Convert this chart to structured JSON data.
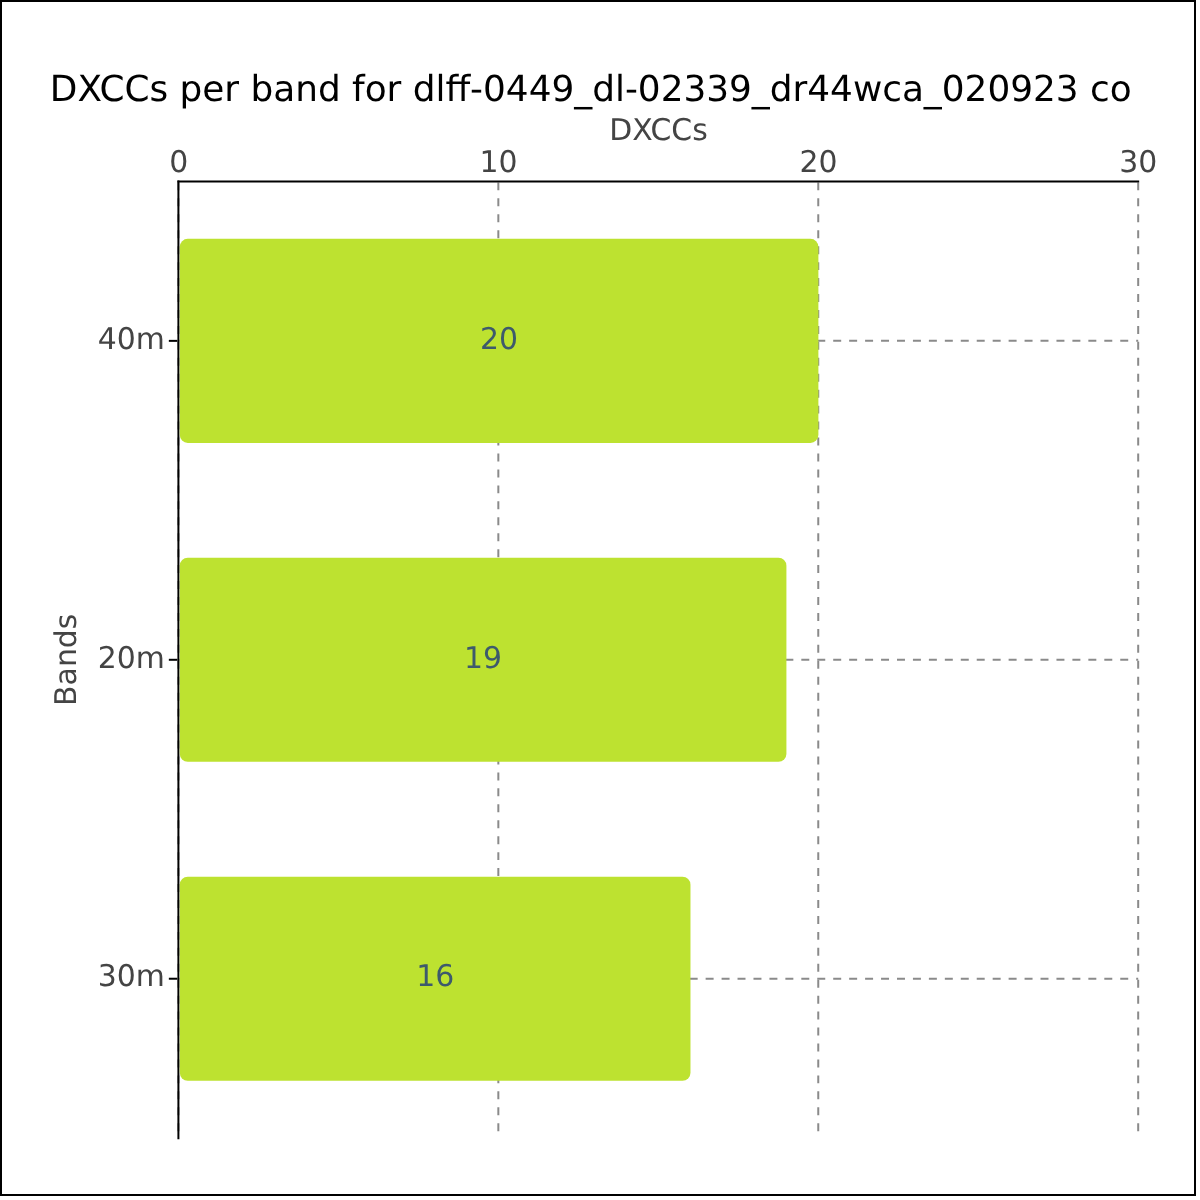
{
  "chart_data": {
    "type": "bar",
    "title": "DXCCs per band for dlff-0449_dl-02339_dr44wca_020923 co",
    "xlabel": "DXCCs",
    "ylabel": "Bands",
    "orientation": "horizontal",
    "categories": [
      "40m",
      "20m",
      "30m"
    ],
    "values": [
      20,
      19,
      16
    ],
    "color": "#bde230",
    "xlim": [
      0,
      30
    ],
    "xticks": [
      0,
      10,
      20,
      30
    ],
    "grid": true,
    "data_labels": true
  }
}
